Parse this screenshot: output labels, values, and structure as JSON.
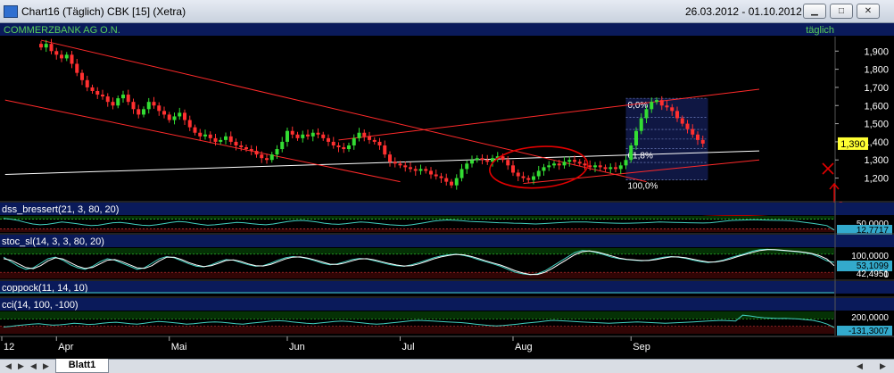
{
  "window": {
    "title": "Chart16 (Täglich)  CBK [15] (Xetra)",
    "date_range": "26.03.2012 - 01.10.2012",
    "buttons": [
      "▁",
      "□",
      "✕"
    ]
  },
  "colors": {
    "background": "#000000",
    "header_band": "#0a1a5a",
    "candle_up": "#33dd33",
    "candle_down": "#ff3030",
    "trendline": "#ff2a2a",
    "support_line": "#ffffff",
    "annotation": "#e00000",
    "indicator_line": "#40d0c0"
  },
  "chart_data": [
    {
      "type": "candlestick",
      "instrument": "COMMERZBANK AG O.N.",
      "period": "täglich",
      "ylim": [
        1.07,
        1.98
      ],
      "y_ticks": [
        {
          "value": 1.9,
          "label": "1,900"
        },
        {
          "value": 1.8,
          "label": "1,800"
        },
        {
          "value": 1.7,
          "label": "1,700"
        },
        {
          "value": 1.6,
          "label": "1,600"
        },
        {
          "value": 1.5,
          "label": "1,500"
        },
        {
          "value": 1.4,
          "label": "1,400"
        },
        {
          "value": 1.3,
          "label": "1,300"
        },
        {
          "value": 1.2,
          "label": "1,200"
        }
      ],
      "last_price": 1.39,
      "last_price_label": "1,390",
      "x_ticks": [
        {
          "index": -7,
          "label": "12"
        },
        {
          "index": 3,
          "label": "Apr"
        },
        {
          "index": 25,
          "label": "Mai"
        },
        {
          "index": 48,
          "label": "Jun"
        },
        {
          "index": 70,
          "label": "Jul"
        },
        {
          "index": 92,
          "label": "Aug"
        },
        {
          "index": 115,
          "label": "Sep"
        }
      ],
      "closes": [
        1.92,
        1.94,
        1.9,
        1.88,
        1.86,
        1.88,
        1.83,
        1.78,
        1.74,
        1.7,
        1.68,
        1.66,
        1.65,
        1.62,
        1.6,
        1.64,
        1.66,
        1.62,
        1.58,
        1.55,
        1.58,
        1.62,
        1.6,
        1.57,
        1.55,
        1.52,
        1.54,
        1.56,
        1.52,
        1.48,
        1.45,
        1.43,
        1.44,
        1.42,
        1.4,
        1.41,
        1.43,
        1.4,
        1.38,
        1.37,
        1.36,
        1.35,
        1.33,
        1.31,
        1.3,
        1.33,
        1.36,
        1.4,
        1.46,
        1.44,
        1.42,
        1.44,
        1.43,
        1.45,
        1.44,
        1.42,
        1.4,
        1.38,
        1.37,
        1.36,
        1.38,
        1.42,
        1.45,
        1.43,
        1.41,
        1.4,
        1.38,
        1.33,
        1.29,
        1.28,
        1.27,
        1.26,
        1.25,
        1.24,
        1.25,
        1.24,
        1.22,
        1.21,
        1.2,
        1.18,
        1.16,
        1.2,
        1.25,
        1.28,
        1.3,
        1.31,
        1.3,
        1.29,
        1.31,
        1.32,
        1.3,
        1.27,
        1.23,
        1.21,
        1.2,
        1.19,
        1.21,
        1.24,
        1.26,
        1.27,
        1.28,
        1.27,
        1.29,
        1.3,
        1.29,
        1.28,
        1.27,
        1.26,
        1.27,
        1.26,
        1.25,
        1.26,
        1.25,
        1.27,
        1.3,
        1.38,
        1.46,
        1.53,
        1.58,
        1.62,
        1.63,
        1.6,
        1.59,
        1.57,
        1.53,
        1.5,
        1.47,
        1.44,
        1.41,
        1.39
      ],
      "trendlines": [
        {
          "from": {
            "index": 0,
            "value": 1.96
          },
          "to": {
            "index": 118,
            "value": 1.18
          }
        },
        {
          "from": {
            "index": -7,
            "value": 1.63
          },
          "to": {
            "index": 70,
            "value": 1.18
          }
        },
        {
          "from": {
            "index": 58,
            "value": 1.41
          },
          "to": {
            "index": 140,
            "value": 1.69
          }
        },
        {
          "from": {
            "index": 94,
            "value": 1.17
          },
          "to": {
            "index": 140,
            "value": 1.3
          }
        }
      ],
      "support_line": {
        "from": {
          "index": -7,
          "value": 1.22
        },
        "to": {
          "index": 140,
          "value": 1.35
        }
      },
      "fibonacci": {
        "x_start_index": 114,
        "x_end_index": 130,
        "high": 1.64,
        "low": 1.19,
        "label_high": "0,0%",
        "label_mid": "61,8%",
        "label_low": "100,0%"
      }
    },
    {
      "type": "line",
      "name": "dss_bressert(21, 3, 80, 20)",
      "ylim": [
        0,
        100
      ],
      "bands": [
        80,
        20
      ],
      "right_labels": [
        "50,0000",
        "12,7717"
      ],
      "series": [
        {
          "values": [
            85,
            80,
            72,
            60,
            50,
            45,
            48,
            55,
            62,
            58,
            52,
            45,
            40,
            42,
            50,
            58,
            60,
            55,
            48,
            42,
            40,
            45,
            52,
            60,
            65,
            62,
            55,
            48,
            42,
            45,
            50,
            55,
            60,
            58,
            52,
            48,
            45,
            50,
            58,
            65,
            70,
            72,
            68,
            62,
            55,
            50,
            48,
            52,
            58,
            62,
            60,
            55,
            50,
            45,
            42,
            40,
            45,
            52,
            60,
            68,
            72,
            75,
            73,
            70,
            66,
            64,
            62,
            60,
            58,
            57,
            55,
            54,
            52,
            50,
            52,
            55,
            58,
            60,
            62,
            63,
            62,
            60,
            58,
            56,
            55,
            54,
            55,
            56,
            58,
            60,
            62,
            61,
            60,
            59,
            58,
            57,
            56,
            58,
            62,
            68,
            72,
            74,
            75,
            76,
            75,
            74,
            73,
            72,
            70,
            66,
            60,
            54,
            47,
            40,
            12
          ]
        }
      ]
    },
    {
      "type": "line",
      "name": "stoc_sl(14, 3, 3, 80, 20)",
      "ylim": [
        0,
        100
      ],
      "bands": [
        80,
        20
      ],
      "right_labels": [
        "100,0000",
        "53,1099",
        "42,4951",
        "0"
      ],
      "series": [
        {
          "values": [
            70,
            55,
            40,
            30,
            35,
            50,
            65,
            70,
            60,
            45,
            35,
            30,
            40,
            55,
            65,
            60,
            50,
            40,
            30,
            35,
            50,
            65,
            72,
            68,
            58,
            48,
            40,
            38,
            45,
            55,
            62,
            60,
            52,
            45,
            40,
            42,
            50,
            60,
            68,
            72,
            70,
            65,
            58,
            50,
            45,
            48,
            55,
            62,
            66,
            64,
            58,
            52,
            46,
            42,
            40,
            45,
            52,
            60,
            68,
            74,
            78,
            80,
            76,
            70,
            62,
            55,
            48,
            40,
            30,
            20,
            15,
            12,
            15,
            25,
            40,
            55,
            70,
            85,
            92,
            90,
            85,
            78,
            70,
            65,
            62,
            60,
            58,
            60,
            65,
            70,
            72,
            70,
            66,
            60,
            55,
            52,
            55,
            60,
            68,
            75,
            82,
            90,
            95,
            96,
            94,
            92,
            90,
            88,
            85,
            80,
            70,
            58,
            53
          ]
        },
        {
          "values": [
            65,
            60,
            48,
            36,
            32,
            42,
            58,
            68,
            64,
            52,
            40,
            33,
            36,
            48,
            60,
            62,
            55,
            45,
            35,
            33,
            42,
            58,
            70,
            70,
            62,
            52,
            44,
            39,
            42,
            50,
            59,
            61,
            56,
            48,
            42,
            41,
            46,
            55,
            64,
            70,
            71,
            67,
            61,
            54,
            47,
            46,
            51,
            58,
            64,
            65,
            61,
            55,
            49,
            44,
            41,
            42,
            48,
            56,
            64,
            71,
            76,
            79,
            78,
            73,
            66,
            58,
            51,
            44,
            35,
            25,
            18,
            13,
            13,
            20,
            33,
            48,
            63,
            78,
            88,
            91,
            87,
            81,
            74,
            67,
            63,
            61,
            59,
            59,
            62,
            67,
            71,
            71,
            68,
            63,
            58,
            54,
            54,
            58,
            64,
            72,
            79,
            86,
            92,
            95,
            95,
            93,
            91,
            89,
            86,
            82,
            75,
            64,
            42
          ]
        }
      ]
    },
    {
      "type": "line",
      "name": "coppock(11, 14, 10)",
      "series": []
    },
    {
      "type": "line",
      "name": "cci(14, 100, -100)",
      "ylim": [
        -300,
        300
      ],
      "bands": [
        100,
        -100
      ],
      "right_labels": [
        "200,0000",
        "-131,3007"
      ],
      "series": [
        {
          "values": [
            -120,
            -100,
            -80,
            -60,
            -40,
            -30,
            -50,
            -70,
            -60,
            -40,
            -20,
            -30,
            -50,
            -40,
            -20,
            0,
            10,
            -10,
            -30,
            -40,
            -20,
            10,
            30,
            20,
            0,
            -20,
            -40,
            -30,
            -10,
            10,
            20,
            10,
            -10,
            -30,
            -40,
            -20,
            0,
            20,
            40,
            50,
            40,
            20,
            0,
            -20,
            -30,
            -10,
            10,
            30,
            40,
            30,
            10,
            -10,
            -30,
            -40,
            -30,
            -10,
            10,
            30,
            50,
            60,
            50,
            40,
            30,
            20,
            10,
            0,
            -20,
            -40,
            -60,
            -80,
            -90,
            -80,
            -60,
            -40,
            -20,
            0,
            20,
            40,
            60,
            50,
            40,
            30,
            20,
            10,
            0,
            -10,
            -20,
            -10,
            0,
            10,
            20,
            10,
            0,
            -10,
            -20,
            -10,
            0,
            10,
            20,
            30,
            40,
            50,
            60,
            50,
            40,
            200,
            180,
            150,
            130,
            120,
            110,
            115,
            105,
            95,
            80,
            60,
            20,
            -40,
            -131
          ]
        }
      ]
    }
  ],
  "tabs": {
    "nav": [
      "◀",
      "▶",
      "◀",
      "▶"
    ],
    "active": "Blatt1"
  }
}
